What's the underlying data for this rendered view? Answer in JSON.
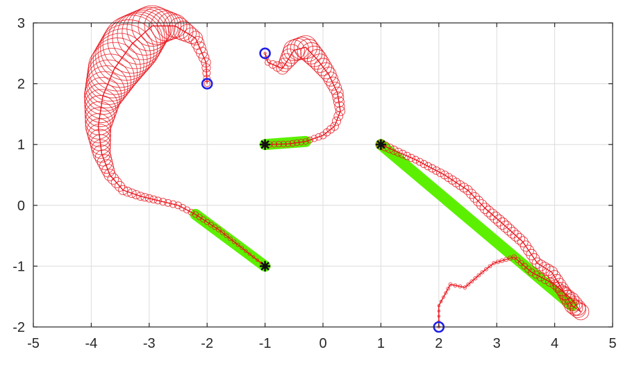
{
  "chart_data": {
    "type": "scatter",
    "title": "",
    "xlabel": "",
    "ylabel": "",
    "xlim": [
      -5,
      5
    ],
    "ylim": [
      -2,
      3
    ],
    "xticks": [
      -5,
      -4,
      -3,
      -2,
      -1,
      0,
      1,
      2,
      3,
      4,
      5
    ],
    "yticks": [
      -2,
      -1,
      0,
      1,
      2,
      3
    ],
    "xtick_labels": [
      "-5",
      "-4",
      "-3",
      "-2",
      "-1",
      "0",
      "1",
      "2",
      "3",
      "4",
      "5"
    ],
    "ytick_labels": [
      "-2",
      "-1",
      "0",
      "1",
      "2",
      "3"
    ],
    "grid": true,
    "legend": "none",
    "colors": {
      "trajectory": "#e8141c",
      "reference": "#5cf000",
      "start_marker": "#1f1fe6",
      "target_marker": "#111111"
    },
    "series": [
      {
        "start": [
          -2,
          2
        ],
        "target": [
          -1,
          -1
        ],
        "path": [
          [
            -2,
            2
          ],
          [
            -2.02,
            2.35
          ],
          [
            -2.2,
            2.75
          ],
          [
            -2.55,
            2.95
          ],
          [
            -2.95,
            2.95
          ],
          [
            -3.3,
            2.65
          ],
          [
            -3.6,
            2.25
          ],
          [
            -3.8,
            1.8
          ],
          [
            -3.88,
            1.3
          ],
          [
            -3.82,
            0.85
          ],
          [
            -3.68,
            0.5
          ],
          [
            -3.45,
            0.25
          ],
          [
            -3.15,
            0.15
          ],
          [
            -2.85,
            0.08
          ],
          [
            -2.5,
            0.0
          ],
          [
            -2.2,
            -0.15
          ],
          [
            -1.8,
            -0.4
          ],
          [
            -1.4,
            -0.7
          ],
          [
            -1.0,
            -1.0
          ]
        ],
        "circle_radii": [
          0.05,
          0.08,
          0.12,
          0.2,
          0.35,
          0.5,
          0.45,
          0.32,
          0.22,
          0.15,
          0.1,
          0.08,
          0.07,
          0.06,
          0.06,
          0.05,
          0.04,
          0.03,
          0.02
        ],
        "reference_band": [
          [
            -2.2,
            -0.15
          ],
          [
            -1.0,
            -1.0
          ]
        ]
      },
      {
        "start": [
          -1,
          2.5
        ],
        "target": [
          -1,
          1
        ],
        "path": [
          [
            -1,
            2.5
          ],
          [
            -0.95,
            2.35
          ],
          [
            -0.7,
            2.25
          ],
          [
            -0.5,
            2.55
          ],
          [
            -0.3,
            2.6
          ],
          [
            -0.1,
            2.4
          ],
          [
            0.1,
            2.15
          ],
          [
            0.25,
            1.85
          ],
          [
            0.3,
            1.55
          ],
          [
            0.2,
            1.3
          ],
          [
            0.0,
            1.15
          ],
          [
            -0.3,
            1.05
          ],
          [
            -0.6,
            1.01
          ],
          [
            -1.0,
            1.0
          ]
        ],
        "circle_radii": [
          0.02,
          0.05,
          0.1,
          0.18,
          0.2,
          0.17,
          0.13,
          0.1,
          0.08,
          0.07,
          0.06,
          0.05,
          0.05,
          0.05
        ],
        "reference_band": [
          [
            -0.3,
            1.05
          ],
          [
            -1.0,
            1.0
          ]
        ]
      },
      {
        "start": [
          2,
          -2
        ],
        "target": [
          1,
          1
        ],
        "path": [
          [
            2,
            -2
          ],
          [
            2.0,
            -1.65
          ],
          [
            2.2,
            -1.3
          ],
          [
            2.45,
            -1.35
          ],
          [
            2.75,
            -1.1
          ],
          [
            2.95,
            -0.95
          ],
          [
            3.3,
            -0.85
          ],
          [
            3.6,
            -1.1
          ],
          [
            4.0,
            -1.3
          ],
          [
            4.3,
            -1.55
          ],
          [
            4.45,
            -1.75
          ],
          [
            4.3,
            -1.65
          ],
          [
            3.95,
            -1.1
          ],
          [
            3.7,
            -0.95
          ],
          [
            3.45,
            -0.6
          ],
          [
            3.1,
            -0.3
          ],
          [
            2.8,
            -0.05
          ],
          [
            2.5,
            0.25
          ],
          [
            2.1,
            0.5
          ],
          [
            1.6,
            0.75
          ],
          [
            1.0,
            1.0
          ]
        ],
        "circle_radii": [
          0.02,
          0.02,
          0.03,
          0.03,
          0.03,
          0.03,
          0.04,
          0.06,
          0.08,
          0.12,
          0.14,
          0.13,
          0.1,
          0.09,
          0.09,
          0.1,
          0.09,
          0.08,
          0.07,
          0.06,
          0.08
        ],
        "reference_band": [
          [
            4.3,
            -1.65
          ],
          [
            1.0,
            1.0
          ]
        ]
      }
    ]
  }
}
